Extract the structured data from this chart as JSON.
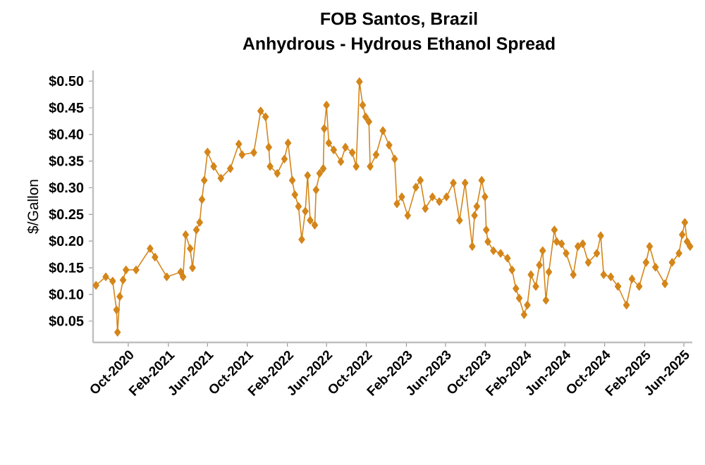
{
  "chart_data": {
    "type": "line",
    "title": "FOB Santos, Brazil",
    "subtitle": "Anhydrous - Hydrous Ethanol Spread",
    "ylabel": "$/Gallon",
    "marker": "diamond",
    "line_style": "solid",
    "grid": false,
    "xlim": [
      "2020-06-15",
      "2025-06-27"
    ],
    "ylim": [
      0.01,
      0.52
    ],
    "xticks": [
      {
        "value": "2020-10-01",
        "label": "Oct-2020"
      },
      {
        "value": "2021-02-01",
        "label": "Feb-2021"
      },
      {
        "value": "2021-06-01",
        "label": "Jun-2021"
      },
      {
        "value": "2021-10-01",
        "label": "Oct-2021"
      },
      {
        "value": "2022-02-01",
        "label": "Feb-2022"
      },
      {
        "value": "2022-06-01",
        "label": "Jun-2022"
      },
      {
        "value": "2022-10-01",
        "label": "Oct-2022"
      },
      {
        "value": "2023-02-01",
        "label": "Feb-2023"
      },
      {
        "value": "2023-06-01",
        "label": "Jun-2023"
      },
      {
        "value": "2023-10-01",
        "label": "Oct-2023"
      },
      {
        "value": "2024-02-01",
        "label": "Feb-2024"
      },
      {
        "value": "2024-06-01",
        "label": "Jun-2024"
      },
      {
        "value": "2024-10-01",
        "label": "Oct-2024"
      },
      {
        "value": "2025-02-01",
        "label": "Feb-2025"
      },
      {
        "value": "2025-06-01",
        "label": "Jun-2025"
      }
    ],
    "yticks": [
      {
        "value": 0.05,
        "label": "$0.05"
      },
      {
        "value": 0.1,
        "label": "$0.10"
      },
      {
        "value": 0.15,
        "label": "$0.15"
      },
      {
        "value": 0.2,
        "label": "$0.20"
      },
      {
        "value": 0.25,
        "label": "$0.25"
      },
      {
        "value": 0.3,
        "label": "$0.30"
      },
      {
        "value": 0.35,
        "label": "$0.35"
      },
      {
        "value": 0.4,
        "label": "$0.40"
      },
      {
        "value": 0.45,
        "label": "$0.45"
      },
      {
        "value": 0.5,
        "label": "$0.50"
      }
    ],
    "x": [
      "2020-06-24",
      "2020-07-24",
      "2020-08-14",
      "2020-08-26",
      "2020-08-29",
      "2020-09-05",
      "2020-09-15",
      "2020-09-24",
      "2020-10-25",
      "2020-12-07",
      "2020-12-22",
      "2021-01-27",
      "2021-03-11",
      "2021-03-18",
      "2021-03-26",
      "2021-04-09",
      "2021-04-16",
      "2021-04-28",
      "2021-05-08",
      "2021-05-15",
      "2021-05-22",
      "2021-06-01",
      "2021-06-20",
      "2021-07-12",
      "2021-08-10",
      "2021-09-05",
      "2021-09-15",
      "2021-10-21",
      "2021-11-11",
      "2021-11-26",
      "2021-12-06",
      "2021-12-10",
      "2022-01-01",
      "2022-01-23",
      "2022-02-03",
      "2022-02-16",
      "2022-02-24",
      "2022-03-07",
      "2022-03-17",
      "2022-03-28",
      "2022-04-04",
      "2022-04-12",
      "2022-04-26",
      "2022-04-30",
      "2022-05-11",
      "2022-05-22",
      "2022-05-25",
      "2022-06-01",
      "2022-06-08",
      "2022-06-23",
      "2022-07-15",
      "2022-07-29",
      "2022-08-19",
      "2022-08-31",
      "2022-09-10",
      "2022-09-20",
      "2022-09-29",
      "2022-10-09",
      "2022-10-13",
      "2022-10-31",
      "2022-11-21",
      "2022-12-10",
      "2022-12-27",
      "2023-01-03",
      "2023-01-18",
      "2023-02-05",
      "2023-03-02",
      "2023-03-16",
      "2023-03-31",
      "2023-04-22",
      "2023-05-13",
      "2023-06-04",
      "2023-06-25",
      "2023-07-14",
      "2023-07-31",
      "2023-08-22",
      "2023-08-29",
      "2023-09-05",
      "2023-09-20",
      "2023-09-30",
      "2023-10-04",
      "2023-10-09",
      "2023-10-26",
      "2023-11-17",
      "2023-12-08",
      "2023-12-22",
      "2024-01-03",
      "2024-01-13",
      "2024-01-28",
      "2024-02-07",
      "2024-02-18",
      "2024-03-04",
      "2024-03-15",
      "2024-03-25",
      "2024-04-04",
      "2024-04-13",
      "2024-04-30",
      "2024-05-07",
      "2024-05-22",
      "2024-06-05",
      "2024-06-27",
      "2024-07-11",
      "2024-07-26",
      "2024-08-12",
      "2024-09-07",
      "2024-09-19",
      "2024-09-28",
      "2024-10-20",
      "2024-11-11",
      "2024-12-07",
      "2024-12-24",
      "2025-01-15",
      "2025-02-05",
      "2025-02-16",
      "2025-03-06",
      "2025-04-04",
      "2025-04-26",
      "2025-05-17",
      "2025-05-27",
      "2025-06-04",
      "2025-06-11",
      "2025-06-20"
    ],
    "series": [
      {
        "color": "#d4861a",
        "values": [
          0.117,
          0.133,
          0.125,
          0.071,
          0.029,
          0.096,
          0.127,
          0.146,
          0.146,
          0.186,
          0.17,
          0.133,
          0.142,
          0.133,
          0.212,
          0.186,
          0.15,
          0.221,
          0.235,
          0.278,
          0.314,
          0.367,
          0.34,
          0.318,
          0.336,
          0.382,
          0.362,
          0.366,
          0.444,
          0.433,
          0.376,
          0.34,
          0.327,
          0.354,
          0.384,
          0.314,
          0.287,
          0.265,
          0.203,
          0.256,
          0.323,
          0.239,
          0.23,
          0.296,
          0.327,
          0.336,
          0.411,
          0.455,
          0.384,
          0.371,
          0.349,
          0.376,
          0.366,
          0.34,
          0.499,
          0.455,
          0.433,
          0.424,
          0.34,
          0.362,
          0.407,
          0.38,
          0.354,
          0.27,
          0.283,
          0.248,
          0.301,
          0.314,
          0.261,
          0.283,
          0.274,
          0.283,
          0.309,
          0.239,
          0.309,
          0.19,
          0.248,
          0.265,
          0.314,
          0.283,
          0.221,
          0.199,
          0.182,
          0.177,
          0.168,
          0.146,
          0.111,
          0.093,
          0.062,
          0.08,
          0.137,
          0.115,
          0.155,
          0.182,
          0.089,
          0.142,
          0.221,
          0.199,
          0.195,
          0.177,
          0.137,
          0.19,
          0.195,
          0.16,
          0.177,
          0.21,
          0.137,
          0.133,
          0.115,
          0.08,
          0.129,
          0.115,
          0.16,
          0.19,
          0.151,
          0.12,
          0.16,
          0.177,
          0.212,
          0.235,
          0.199,
          0.19
        ]
      }
    ]
  }
}
